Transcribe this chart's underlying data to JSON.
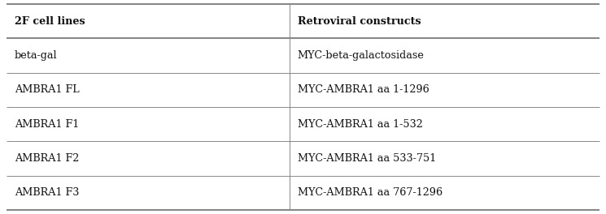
{
  "col1_header": "2F cell lines",
  "col2_header": "Retroviral constructs",
  "rows": [
    [
      "beta-gal",
      "MYC-beta-galactosidase"
    ],
    [
      "AMBRA1 FL",
      "MYC-AMBRA1 aa 1-1296"
    ],
    [
      "AMBRA1 F1",
      "MYC-AMBRA1 aa 1-532"
    ],
    [
      "AMBRA1 F2",
      "MYC-AMBRA1 aa 533-751"
    ],
    [
      "AMBRA1 F3",
      "MYC-AMBRA1 aa 767-1296"
    ]
  ],
  "col_split": 0.477,
  "background_color": "#ffffff",
  "line_color": "#888888",
  "text_color": "#111111",
  "header_fontsize": 9.2,
  "body_fontsize": 9.2,
  "fig_width": 7.45,
  "fig_height": 2.64,
  "dpi": 100
}
